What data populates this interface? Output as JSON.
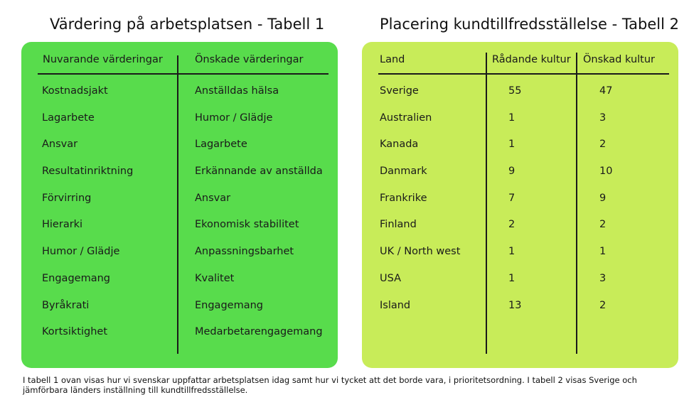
{
  "table1": {
    "title": "Värdering på arbetsplatsen - Tabell 1",
    "headers": [
      "Nuvarande värderingar",
      "Önskade värderingar"
    ],
    "current": [
      "Kostnadsjakt",
      "Lagarbete",
      "Ansvar",
      "Resultatinriktning",
      "Förvirring",
      "Hierarki",
      "Humor / Glädje",
      "Engagemang",
      "Byråkrati",
      "Kortsiktighet"
    ],
    "desired": [
      "Anställdas hälsa",
      "Humor / Glädje",
      "Lagarbete",
      "Erkännande av anställda",
      "Ansvar",
      "Ekonomisk stabilitet",
      "Anpassningsbarhet",
      "Kvalitet",
      "Engagemang",
      "Medarbetarengagemang"
    ],
    "bg_color": "#58dc4c"
  },
  "table2": {
    "title": "Placering kundtillfredsställelse - Tabell 2",
    "headers": [
      "Land",
      "Rådande kultur",
      "Önskad kultur"
    ],
    "countries": [
      "Sverige",
      "Australien",
      "Kanada",
      "Danmark",
      "Frankrike",
      "Finland",
      "UK / North west",
      "USA",
      "Island"
    ],
    "current": [
      "55",
      "1",
      "1",
      "9",
      "7",
      "2",
      "1",
      "1",
      "13"
    ],
    "desired": [
      "47",
      "3",
      "2",
      "10",
      "9",
      "2",
      "1",
      "3",
      "2"
    ],
    "bg_color": "#c8ec59"
  },
  "caption": "I tabell 1 ovan visas hur vi svenskar uppfattar arbetsplatsen idag samt hur vi tycket att det borde vara, i prioritetsordning. I tabell 2 visas Sverige och jämförbara länders inställning till kundtillfredsställelse."
}
